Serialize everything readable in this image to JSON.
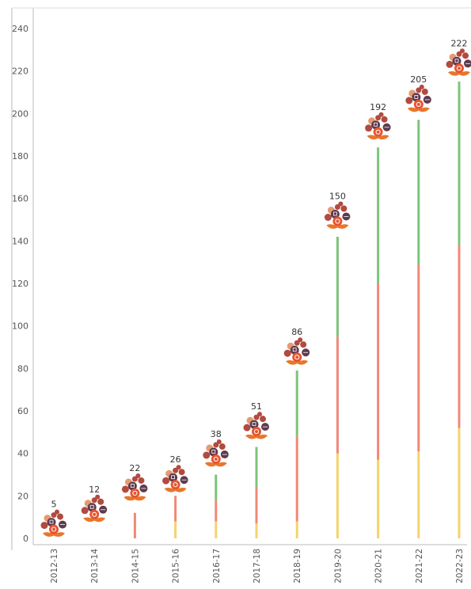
{
  "chart_data": {
    "type": "bar",
    "title": "",
    "xlabel": "",
    "ylabel": "",
    "categories": [
      "2012-13",
      "2013-14",
      "2014-15",
      "2015-16",
      "2016-17",
      "2017-18",
      "2018-19",
      "2019-20",
      "2020-21",
      "2021-22",
      "2022-23"
    ],
    "values": [
      5,
      12,
      22,
      26,
      38,
      51,
      86,
      150,
      192,
      205,
      222
    ],
    "stacked_segments": [
      {
        "color": "#f5d36b",
        "values": [
          0,
          0,
          0,
          8,
          8,
          7,
          8,
          40,
          37,
          41,
          52
        ]
      },
      {
        "color": "#f08878",
        "values": [
          0,
          0,
          12,
          12,
          10,
          17,
          40,
          55,
          83,
          88,
          86
        ]
      },
      {
        "color": "#7cc47a",
        "values": [
          0,
          0,
          0,
          0,
          12,
          19,
          31,
          47,
          64,
          68,
          77
        ]
      }
    ],
    "ylim": [
      0,
      240
    ],
    "yticks": [
      0,
      20,
      40,
      60,
      80,
      100,
      120,
      140,
      160,
      180,
      200,
      220,
      240
    ],
    "grid": false,
    "marker": "flower-icon",
    "colors": {
      "axis": "#bbbbbb",
      "flower_petal_1": "#b24a3f",
      "flower_petal_2": "#e59b72",
      "flower_petal_3": "#5f3a4e",
      "flower_center": "#e8542f",
      "flower_leaves": "#e8762b"
    }
  }
}
